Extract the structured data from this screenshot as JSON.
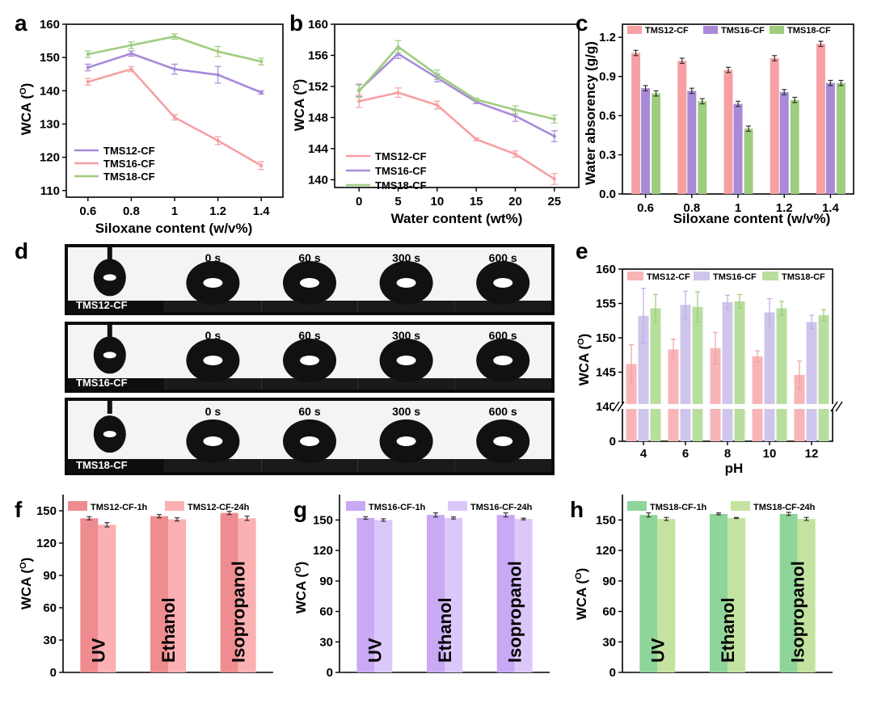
{
  "colors": {
    "tms12": "#F6A0A3",
    "tms16": "#A98AD9",
    "tms18": "#9FCD80",
    "tms12_dark": "#EE8C8F",
    "tms16_dark": "#C9A8F4",
    "tms18_dark": "#8ED59A"
  },
  "panels": {
    "a": {
      "label": "a",
      "xlabel": "Siloxane content (w/v%)",
      "ylabel": "WCA (",
      "ylabel_sup": "O",
      "ylabel_close": ")"
    },
    "b": {
      "label": "b",
      "xlabel": "Water content  (wt%)",
      "ylabel": "WCA (",
      "ylabel_sup": "O",
      "ylabel_close": ")"
    },
    "c": {
      "label": "c",
      "xlabel": "Siloxane content (w/v%)",
      "ylabel": "Water absorency (g/g)"
    },
    "d": {
      "label": "d",
      "times": [
        "0 s",
        "60 s",
        "300 s",
        "600 s"
      ],
      "samples": [
        "TMS12-CF",
        "TMS16-CF",
        "TMS18-CF"
      ]
    },
    "e": {
      "label": "e",
      "xlabel": "pH",
      "ylabel": "WCA (",
      "ylabel_sup": "O",
      "ylabel_close": ")"
    },
    "f": {
      "label": "f",
      "ylabel": "WCA (",
      "ylabel_sup": "O",
      "ylabel_close": ")"
    },
    "g": {
      "label": "g",
      "ylabel": "WCA (",
      "ylabel_sup": "O",
      "ylabel_close": ")"
    },
    "h": {
      "label": "h",
      "ylabel": "WCA (",
      "ylabel_sup": "O",
      "ylabel_close": ")"
    }
  },
  "chart_data": [
    {
      "panel": "a",
      "type": "line",
      "x": [
        0.6,
        0.8,
        1,
        1.2,
        1.4
      ],
      "xticks": [
        "0.6",
        "0.8",
        "1",
        "1.2",
        "1.4"
      ],
      "ylim": [
        108,
        160
      ],
      "yticks": [
        110,
        120,
        130,
        140,
        150,
        160
      ],
      "series": [
        {
          "name": "TMS12-CF",
          "values": [
            147,
            151.2,
            146.5,
            144.8,
            139.5
          ],
          "err": [
            1,
            0.8,
            1.5,
            2.5,
            0.5
          ]
        },
        {
          "name": "TMS16-CF",
          "values": [
            142.7,
            146.5,
            132,
            125,
            117.5
          ],
          "err": [
            1,
            0.8,
            0.8,
            1.2,
            1.2
          ]
        },
        {
          "name": "TMS18-CF",
          "values": [
            151,
            153.7,
            156.3,
            151.8,
            148.8
          ],
          "err": [
            1,
            1,
            0.8,
            1.5,
            1
          ]
        }
      ],
      "legend_order": [
        0,
        1,
        2
      ],
      "legend_colors": [
        "tms16",
        "tms12",
        "tms18"
      ]
    },
    {
      "panel": "b",
      "type": "line",
      "x": [
        0,
        5,
        10,
        15,
        20,
        25
      ],
      "xticks": [
        "0",
        "5",
        "10",
        "15",
        "20",
        "25"
      ],
      "ylim": [
        139,
        160
      ],
      "yticks": [
        140,
        144,
        148,
        152,
        156,
        160
      ],
      "series": [
        {
          "name": "TMS12-CF",
          "values": [
            150.1,
            151.2,
            149.6,
            145.2,
            143.3,
            140.1
          ],
          "err": [
            0.8,
            0.6,
            0.5,
            0.2,
            0.4,
            0.7
          ]
        },
        {
          "name": "TMS16-CF",
          "values": [
            151.5,
            156.2,
            153.1,
            150,
            148.2,
            145.6
          ],
          "err": [
            0.8,
            0.6,
            0.5,
            0.2,
            0.7,
            0.7
          ]
        },
        {
          "name": "TMS18-CF",
          "values": [
            151.4,
            157.1,
            153.5,
            150.3,
            149,
            147.8
          ],
          "err": [
            0.8,
            0.8,
            0.6,
            0.2,
            0.5,
            0.5
          ]
        }
      ]
    },
    {
      "panel": "c",
      "type": "bar",
      "categories": [
        "0.6",
        "0.8",
        "1",
        "1.2",
        "1.4"
      ],
      "ylim": [
        0,
        1.3
      ],
      "yticks": [
        "0.0",
        "0.3",
        "0.6",
        "0.9",
        "1.2"
      ],
      "ytickvals": [
        0,
        0.3,
        0.6,
        0.9,
        1.2
      ],
      "series": [
        {
          "name": "TMS12-CF",
          "values": [
            1.08,
            1.02,
            0.95,
            1.04,
            1.15
          ],
          "err": [
            0.02,
            0.02,
            0.02,
            0.02,
            0.02
          ]
        },
        {
          "name": "TMS16-CF",
          "values": [
            0.81,
            0.79,
            0.69,
            0.78,
            0.85
          ],
          "err": [
            0.02,
            0.02,
            0.02,
            0.02,
            0.02
          ]
        },
        {
          "name": "TMS18-CF",
          "values": [
            0.77,
            0.71,
            0.5,
            0.72,
            0.85
          ],
          "err": [
            0.02,
            0.02,
            0.02,
            0.02,
            0.02
          ]
        }
      ]
    },
    {
      "panel": "e",
      "type": "bar",
      "categories": [
        "4",
        "6",
        "8",
        "10",
        "12"
      ],
      "yticks": [
        "0",
        "140",
        "145",
        "150",
        "155",
        "160"
      ],
      "series": [
        {
          "name": "TMS12-CF",
          "values": [
            146.2,
            148.3,
            148.5,
            147.3,
            144.6
          ],
          "err": [
            2.8,
            1.5,
            2.3,
            0.8,
            2
          ]
        },
        {
          "name": "TMS16-CF",
          "values": [
            153.2,
            154.8,
            155.2,
            153.7,
            152.3
          ],
          "err": [
            4,
            2,
            1,
            2,
            1
          ]
        },
        {
          "name": "TMS18-CF",
          "values": [
            154.3,
            154.5,
            155.3,
            154.3,
            153.3
          ],
          "err": [
            2,
            2.2,
            1,
            1,
            0.8
          ]
        }
      ]
    },
    {
      "panel": "f",
      "type": "bar",
      "categories": [
        "UV",
        "Ethanol",
        "Isopropanol"
      ],
      "ylim": [
        0,
        165
      ],
      "yticks": [
        0,
        30,
        60,
        90,
        120,
        150
      ],
      "series": [
        {
          "name": "TMS12-CF-1h",
          "values": [
            143,
            145,
            148
          ],
          "err": [
            1.5,
            1.5,
            1.5
          ]
        },
        {
          "name": "TMS12-CF-24h",
          "values": [
            137,
            142,
            143
          ],
          "err": [
            2,
            1.5,
            2
          ]
        }
      ]
    },
    {
      "panel": "g",
      "type": "bar",
      "categories": [
        "UV",
        "Ethanol",
        "Isopropanol"
      ],
      "ylim": [
        0,
        175
      ],
      "yticks": [
        0,
        30,
        60,
        90,
        120,
        150
      ],
      "series": [
        {
          "name": "TMS16-CF-1h",
          "values": [
            152,
            155,
            155
          ],
          "err": [
            1.2,
            2,
            2
          ]
        },
        {
          "name": "TMS16-CF-24h",
          "values": [
            150,
            152,
            151
          ],
          "err": [
            1.2,
            1,
            0.8
          ]
        }
      ]
    },
    {
      "panel": "h",
      "type": "bar",
      "categories": [
        "UV",
        "Ethanol",
        "Isopropanol"
      ],
      "ylim": [
        0,
        175
      ],
      "yticks": [
        0,
        30,
        60,
        90,
        120,
        150
      ],
      "series": [
        {
          "name": "TMS18-CF-1h",
          "values": [
            155,
            156,
            156
          ],
          "err": [
            2,
            1,
            1.5
          ]
        },
        {
          "name": "TMS18-CF-24h",
          "values": [
            151,
            152,
            151
          ],
          "err": [
            1.5,
            0.5,
            1.5
          ]
        }
      ]
    }
  ]
}
